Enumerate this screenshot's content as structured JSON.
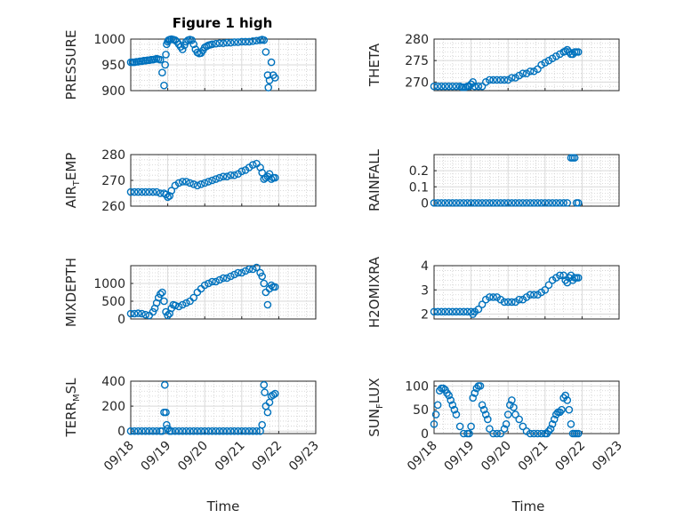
{
  "figure_title": "Figure 1 high",
  "x_title": "Time",
  "marker_color": "#0072bd",
  "chart_data": [
    {
      "type": "scatter",
      "ylabel": "PRESSURE",
      "ylim": [
        900,
        1000
      ],
      "yticks": [
        "900",
        "950",
        "1000"
      ],
      "xlim": [
        0,
        5
      ],
      "xticks": [
        "09/18",
        "09/19",
        "09/20",
        "09/21",
        "09/22",
        "09/23"
      ],
      "grid": "on, with minor grid",
      "title": "Figure 1 high",
      "x": [
        0,
        0.05,
        0.1,
        0.15,
        0.2,
        0.25,
        0.3,
        0.35,
        0.4,
        0.45,
        0.5,
        0.55,
        0.6,
        0.65,
        0.7,
        0.75,
        0.8,
        0.85,
        0.9,
        0.93,
        0.95,
        0.97,
        1.0,
        1.02,
        1.05,
        1.1,
        1.15,
        1.2,
        1.25,
        1.3,
        1.35,
        1.4,
        1.45,
        1.5,
        1.55,
        1.6,
        1.65,
        1.7,
        1.75,
        1.8,
        1.85,
        1.9,
        1.95,
        2.0,
        2.05,
        2.1,
        2.15,
        2.2,
        2.3,
        2.4,
        2.5,
        2.6,
        2.7,
        2.8,
        2.9,
        3.0,
        3.1,
        3.2,
        3.3,
        3.4,
        3.5,
        3.55,
        3.6,
        3.65,
        3.7,
        3.72,
        3.75,
        3.8,
        3.85,
        3.9
      ],
      "y": [
        955,
        955,
        955,
        956,
        956,
        957,
        957,
        958,
        958,
        959,
        959,
        960,
        960,
        961,
        962,
        961,
        960,
        935,
        910,
        950,
        970,
        990,
        995,
        998,
        999,
        1000,
        999,
        998,
        995,
        990,
        985,
        980,
        988,
        995,
        998,
        999,
        998,
        990,
        980,
        974,
        972,
        973,
        978,
        984,
        986,
        988,
        989,
        990,
        991,
        992,
        992,
        993,
        993,
        994,
        994,
        995,
        995,
        995,
        996,
        997,
        998,
        999,
        998,
        975,
        930,
        906,
        920,
        955,
        930,
        925
      ]
    },
    {
      "type": "scatter",
      "ylabel": "THETA",
      "ylim": [
        268,
        280
      ],
      "yticks": [
        "270",
        "275",
        "280"
      ],
      "xlim": [
        0,
        5
      ],
      "xticks": [
        "09/18",
        "09/19",
        "09/20",
        "09/21",
        "09/22",
        "09/23"
      ],
      "grid": "on, with minor grid",
      "x": [
        0,
        0.1,
        0.2,
        0.3,
        0.4,
        0.5,
        0.6,
        0.7,
        0.75,
        0.8,
        0.85,
        0.9,
        0.95,
        1.0,
        1.05,
        1.1,
        1.2,
        1.3,
        1.4,
        1.5,
        1.6,
        1.7,
        1.8,
        1.9,
        2.0,
        2.1,
        2.2,
        2.3,
        2.4,
        2.5,
        2.6,
        2.7,
        2.8,
        2.9,
        3.0,
        3.1,
        3.2,
        3.3,
        3.4,
        3.5,
        3.55,
        3.6,
        3.65,
        3.7,
        3.75,
        3.8,
        3.85,
        3.9
      ],
      "y": [
        269,
        269,
        269,
        269,
        269,
        269,
        269,
        269,
        268.8,
        268.8,
        268.8,
        269,
        269,
        269.5,
        270,
        269,
        269,
        269,
        270,
        270.5,
        270.5,
        270.5,
        270.5,
        270.5,
        270.5,
        271,
        271,
        271.5,
        272,
        272,
        272.5,
        272.5,
        273,
        274,
        274.5,
        275,
        275.5,
        276,
        276.5,
        277,
        277.2,
        277.5,
        277,
        276.5,
        276.5,
        277,
        277,
        277
      ]
    },
    {
      "type": "scatter",
      "ylabel": "AIR_TEMP",
      "ylim": [
        260,
        280
      ],
      "yticks": [
        "260",
        "270",
        "280"
      ],
      "xlim": [
        0,
        5
      ],
      "xticks": [
        "09/18",
        "09/19",
        "09/20",
        "09/21",
        "09/22",
        "09/23"
      ],
      "grid": "on, with minor grid",
      "x": [
        0,
        0.1,
        0.2,
        0.3,
        0.4,
        0.5,
        0.6,
        0.7,
        0.8,
        0.9,
        0.95,
        1.0,
        1.05,
        1.1,
        1.2,
        1.3,
        1.4,
        1.5,
        1.6,
        1.7,
        1.8,
        1.9,
        2.0,
        2.1,
        2.2,
        2.3,
        2.4,
        2.5,
        2.6,
        2.7,
        2.8,
        2.9,
        3.0,
        3.1,
        3.2,
        3.3,
        3.4,
        3.5,
        3.55,
        3.6,
        3.65,
        3.7,
        3.75,
        3.8,
        3.85,
        3.9
      ],
      "y": [
        265.5,
        265.5,
        265.5,
        265.5,
        265.5,
        265.5,
        265.5,
        265.5,
        265,
        265,
        264.5,
        263.5,
        264,
        266,
        268,
        269,
        269.5,
        269.5,
        269,
        268.5,
        268,
        268.5,
        269,
        269.5,
        270,
        270.5,
        271,
        271.5,
        271.5,
        272,
        272,
        272.5,
        273.5,
        274,
        275,
        276,
        276.5,
        275,
        273,
        270.5,
        271,
        271.5,
        272.5,
        270.5,
        271,
        271
      ]
    },
    {
      "type": "scatter",
      "ylabel": "RAINFALL",
      "ylim": [
        -0.02,
        0.3
      ],
      "yticks": [
        "0",
        "0.1",
        "0.2"
      ],
      "xlim": [
        0,
        5
      ],
      "xticks": [
        "09/18",
        "09/19",
        "09/20",
        "09/21",
        "09/22",
        "09/23"
      ],
      "grid": "on, with minor grid",
      "x": [
        0,
        0.1,
        0.2,
        0.3,
        0.4,
        0.5,
        0.6,
        0.7,
        0.8,
        0.9,
        1.0,
        1.1,
        1.2,
        1.3,
        1.4,
        1.5,
        1.6,
        1.7,
        1.8,
        1.9,
        2.0,
        2.1,
        2.2,
        2.3,
        2.4,
        2.5,
        2.6,
        2.7,
        2.8,
        2.9,
        3.0,
        3.1,
        3.2,
        3.3,
        3.4,
        3.5,
        3.6,
        3.7,
        3.75,
        3.8,
        3.85,
        3.9
      ],
      "y": [
        0,
        0,
        0,
        0,
        0,
        0,
        0,
        0,
        0,
        0,
        0,
        0,
        0,
        0,
        0,
        0,
        0,
        0,
        0,
        0,
        0,
        0,
        0,
        0,
        0,
        0,
        0,
        0,
        0,
        0,
        0,
        0,
        0,
        0,
        0,
        0,
        0,
        0.28,
        0.28,
        0.28,
        0,
        0
      ]
    },
    {
      "type": "scatter",
      "ylabel": "MIXDEPTH",
      "ylim": [
        0,
        1500
      ],
      "yticks": [
        "0",
        "500",
        "1000"
      ],
      "xlim": [
        0,
        5
      ],
      "xticks": [
        "09/18",
        "09/19",
        "09/20",
        "09/21",
        "09/22",
        "09/23"
      ],
      "grid": "on, with minor grid",
      "x": [
        0,
        0.1,
        0.2,
        0.3,
        0.4,
        0.5,
        0.6,
        0.65,
        0.7,
        0.75,
        0.8,
        0.85,
        0.9,
        0.95,
        1.0,
        1.05,
        1.1,
        1.15,
        1.2,
        1.3,
        1.4,
        1.5,
        1.6,
        1.7,
        1.8,
        1.9,
        2.0,
        2.1,
        2.2,
        2.3,
        2.4,
        2.5,
        2.6,
        2.7,
        2.8,
        2.9,
        3.0,
        3.1,
        3.2,
        3.3,
        3.4,
        3.5,
        3.55,
        3.6,
        3.65,
        3.7,
        3.75,
        3.8,
        3.85,
        3.9
      ],
      "y": [
        150,
        150,
        160,
        150,
        120,
        100,
        200,
        300,
        450,
        600,
        700,
        750,
        500,
        200,
        100,
        150,
        300,
        400,
        380,
        350,
        400,
        450,
        500,
        600,
        750,
        850,
        950,
        1000,
        1050,
        1050,
        1100,
        1150,
        1150,
        1200,
        1250,
        1300,
        1300,
        1350,
        1400,
        1400,
        1450,
        1300,
        1200,
        1000,
        750,
        400,
        850,
        950,
        900,
        900
      ]
    },
    {
      "type": "scatter",
      "ylabel": "H2OMIXRA",
      "ylim": [
        1.8,
        4
      ],
      "yticks": [
        "2",
        "3",
        "4"
      ],
      "xlim": [
        0,
        5
      ],
      "xticks": [
        "09/18",
        "09/19",
        "09/20",
        "09/21",
        "09/22",
        "09/23"
      ],
      "grid": "on, with minor grid",
      "x": [
        0,
        0.1,
        0.2,
        0.3,
        0.4,
        0.5,
        0.6,
        0.7,
        0.8,
        0.9,
        1.0,
        1.05,
        1.1,
        1.2,
        1.3,
        1.4,
        1.5,
        1.6,
        1.7,
        1.8,
        1.9,
        2.0,
        2.1,
        2.2,
        2.3,
        2.4,
        2.5,
        2.6,
        2.7,
        2.8,
        2.9,
        3.0,
        3.1,
        3.2,
        3.3,
        3.4,
        3.5,
        3.55,
        3.6,
        3.65,
        3.7,
        3.75,
        3.8,
        3.85,
        3.9
      ],
      "y": [
        2.1,
        2.1,
        2.1,
        2.1,
        2.1,
        2.1,
        2.1,
        2.1,
        2.1,
        2.1,
        2.1,
        2.0,
        2.1,
        2.2,
        2.4,
        2.6,
        2.7,
        2.7,
        2.7,
        2.6,
        2.5,
        2.5,
        2.5,
        2.5,
        2.6,
        2.6,
        2.7,
        2.8,
        2.8,
        2.8,
        2.9,
        3.0,
        3.2,
        3.4,
        3.5,
        3.6,
        3.6,
        3.4,
        3.3,
        3.5,
        3.6,
        3.4,
        3.5,
        3.5,
        3.5
      ]
    },
    {
      "type": "scatter",
      "ylabel": "TERR_MSL",
      "ylim": [
        -20,
        400
      ],
      "yticks": [
        "0",
        "200",
        "400"
      ],
      "xlim": [
        0,
        5
      ],
      "xticks": [
        "09/18",
        "09/19",
        "09/20",
        "09/21",
        "09/22",
        "09/23"
      ],
      "grid": "on, with minor grid",
      "x": [
        0,
        0.1,
        0.2,
        0.3,
        0.4,
        0.5,
        0.6,
        0.7,
        0.8,
        0.85,
        0.9,
        0.92,
        0.95,
        0.97,
        1.0,
        1.05,
        1.1,
        1.2,
        1.3,
        1.4,
        1.5,
        1.6,
        1.7,
        1.8,
        1.9,
        2.0,
        2.1,
        2.2,
        2.3,
        2.4,
        2.5,
        2.6,
        2.7,
        2.8,
        2.9,
        3.0,
        3.1,
        3.2,
        3.3,
        3.4,
        3.5,
        3.55,
        3.6,
        3.62,
        3.65,
        3.7,
        3.75,
        3.8,
        3.85,
        3.9
      ],
      "y": [
        0,
        0,
        0,
        0,
        0,
        0,
        0,
        0,
        0,
        0,
        150,
        370,
        150,
        50,
        20,
        0,
        0,
        0,
        0,
        0,
        0,
        0,
        0,
        0,
        0,
        0,
        0,
        0,
        0,
        0,
        0,
        0,
        0,
        0,
        0,
        0,
        0,
        0,
        0,
        0,
        0,
        50,
        370,
        310,
        200,
        150,
        230,
        280,
        290,
        300
      ]
    },
    {
      "type": "scatter",
      "ylabel": "SUN_FLUX",
      "ylim": [
        0,
        110
      ],
      "yticks": [
        "0",
        "50",
        "100"
      ],
      "xlim": [
        0,
        5
      ],
      "xticks": [
        "09/18",
        "09/19",
        "09/20",
        "09/21",
        "09/22",
        "09/23"
      ],
      "grid": "on, with minor grid",
      "x": [
        0,
        0.05,
        0.1,
        0.15,
        0.2,
        0.25,
        0.3,
        0.35,
        0.4,
        0.45,
        0.5,
        0.55,
        0.6,
        0.7,
        0.8,
        0.9,
        0.95,
        1.0,
        1.05,
        1.1,
        1.15,
        1.2,
        1.25,
        1.3,
        1.35,
        1.4,
        1.45,
        1.5,
        1.6,
        1.7,
        1.8,
        1.9,
        1.95,
        2.0,
        2.05,
        2.1,
        2.15,
        2.2,
        2.3,
        2.4,
        2.5,
        2.6,
        2.7,
        2.8,
        2.9,
        3.0,
        3.05,
        3.1,
        3.15,
        3.2,
        3.25,
        3.3,
        3.35,
        3.4,
        3.45,
        3.5,
        3.55,
        3.6,
        3.65,
        3.7,
        3.75,
        3.8,
        3.85,
        3.9
      ],
      "y": [
        20,
        40,
        60,
        90,
        95,
        95,
        92,
        85,
        80,
        70,
        60,
        50,
        40,
        15,
        0,
        0,
        0,
        15,
        75,
        85,
        95,
        100,
        100,
        60,
        50,
        40,
        30,
        10,
        0,
        0,
        0,
        10,
        20,
        40,
        60,
        70,
        55,
        40,
        30,
        15,
        5,
        0,
        0,
        0,
        0,
        0,
        0,
        5,
        10,
        20,
        30,
        40,
        45,
        45,
        50,
        75,
        80,
        70,
        50,
        20,
        0,
        0,
        0,
        0
      ]
    }
  ]
}
